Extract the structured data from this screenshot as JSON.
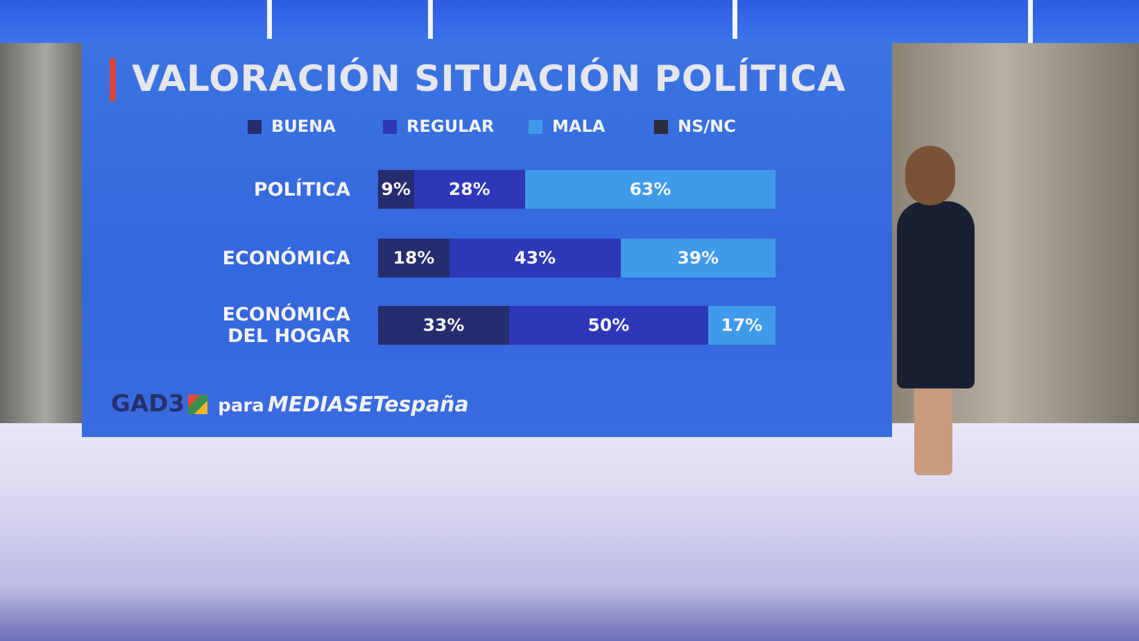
{
  "chart_data": {
    "type": "stacked-bar",
    "orientation": "horizontal",
    "title": "VALORACIÓN SITUACIÓN POLÍTICA",
    "categories": [
      "POLÍTICA",
      "ECONÓMICA",
      "ECONÓMICA\nDEL HOGAR"
    ],
    "series": [
      {
        "name": "BUENA",
        "color": "#262d6e",
        "values": [
          9,
          18,
          33
        ],
        "value_labels": [
          "9%",
          "18%",
          "33%"
        ]
      },
      {
        "name": "REGULAR",
        "color": "#2d37b8",
        "values": [
          28,
          43,
          50
        ],
        "value_labels": [
          "28%",
          "43%",
          "50%"
        ]
      },
      {
        "name": "MALA",
        "color": "#3f9be9",
        "values": [
          63,
          39,
          17
        ],
        "value_labels": [
          "63%",
          "39%",
          "17%"
        ]
      },
      {
        "name": "NS/NC",
        "color": "#2a2b3a",
        "values": [
          0,
          0,
          0
        ]
      }
    ],
    "xlim": [
      0,
      100
    ],
    "source": {
      "brand": "GAD3",
      "connector": "para",
      "client": "MEDIASETespaña"
    }
  }
}
